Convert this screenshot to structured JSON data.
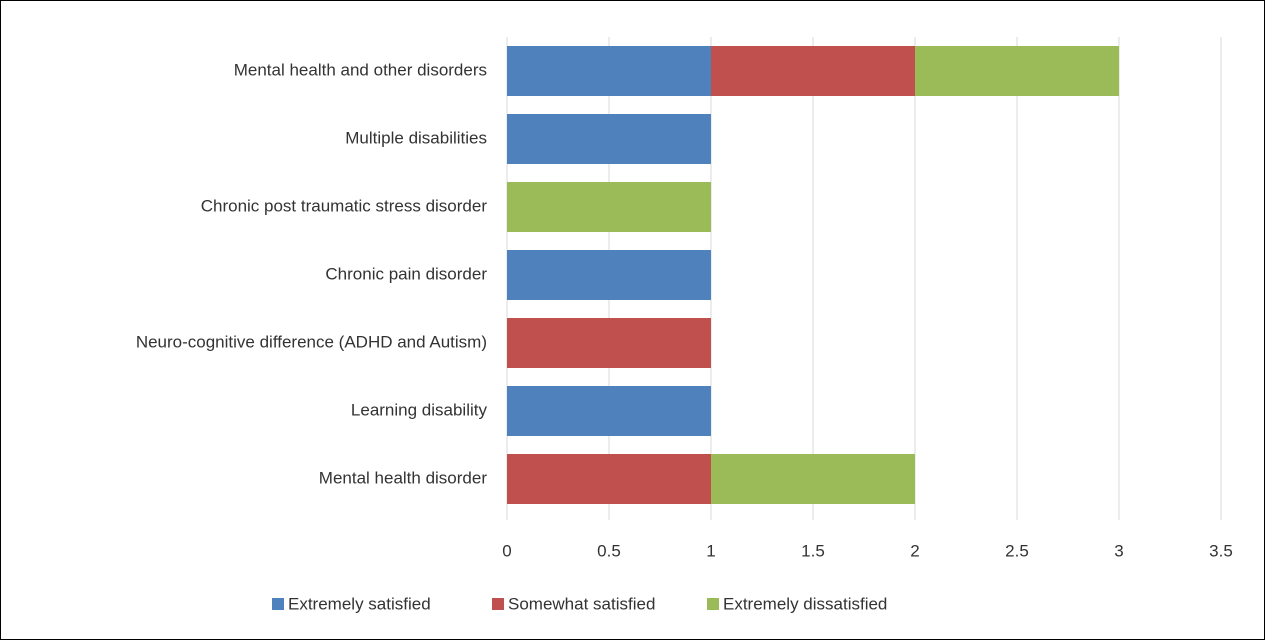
{
  "chart_data": {
    "type": "stacked_bar_horizontal",
    "categories": [
      "Mental health and other disorders",
      "Multiple disabilities",
      "Chronic post traumatic stress disorder",
      "Chronic pain disorder",
      "Neuro-cognitive difference (ADHD and Autism)",
      "Learning disability",
      "Mental health disorder"
    ],
    "series": [
      {
        "name": "Extremely satisfied",
        "color": "#4f81bd",
        "values": [
          1,
          1,
          0,
          1,
          0,
          1,
          0
        ]
      },
      {
        "name": "Somewhat satisfied",
        "color": "#c0504d",
        "values": [
          1,
          0,
          0,
          0,
          1,
          0,
          1
        ]
      },
      {
        "name": "Extremely dissatisfied",
        "color": "#9bbb59",
        "values": [
          1,
          0,
          1,
          0,
          0,
          0,
          1
        ]
      }
    ],
    "xlim": [
      0,
      3.5
    ],
    "xticks": [
      0,
      0.5,
      1,
      1.5,
      2,
      2.5,
      3,
      3.5
    ],
    "grid": true,
    "legend": "bottom"
  }
}
